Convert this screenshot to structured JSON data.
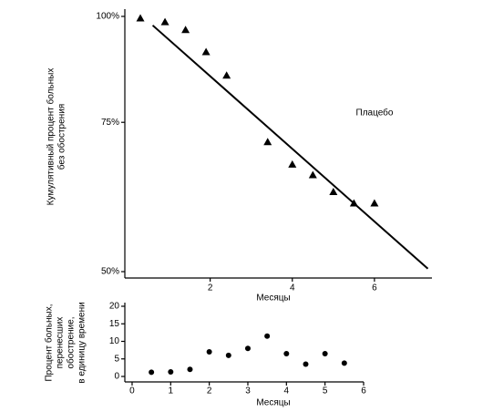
{
  "chart_data": [
    {
      "type": "scatter",
      "ylabel": [
        "Кумулятивный процент больных",
        "без обострения"
      ],
      "xlabel": "Месяцы",
      "annotation": "Плацебо",
      "xlim": [
        -0.1,
        7.4
      ],
      "ylim": [
        50,
        100
      ],
      "yscale": "log",
      "xticks": [
        2,
        4,
        6
      ],
      "yticks": [
        {
          "value": 50,
          "label": "50%"
        },
        {
          "value": 75,
          "label": "75%"
        },
        {
          "value": 100,
          "label": "100%"
        }
      ],
      "series": [
        {
          "type": "scatter",
          "marker": "triangle",
          "color": "#000000",
          "x": [
            0.3,
            0.9,
            1.4,
            1.9,
            2.4,
            3.4,
            4,
            4.5,
            5,
            5.5,
            6
          ],
          "values": [
            99.5,
            98.5,
            96.4,
            90.8,
            85.2,
            71.1,
            66.9,
            65,
            62.1,
            60.2,
            60.2
          ]
        },
        {
          "type": "line",
          "color": "#000000",
          "x": [
            0.6,
            7.3
          ],
          "values": [
            97.6,
            50.4
          ]
        }
      ]
    },
    {
      "type": "scatter",
      "ylabel": [
        "Процент больных,",
        "перенесших",
        "обострение,",
        "в единицу времени"
      ],
      "xlabel": "Месяцы",
      "xlim": [
        -0.2,
        6
      ],
      "ylim": [
        0,
        20
      ],
      "xticks": [
        0,
        1,
        2,
        3,
        4,
        5,
        6
      ],
      "yticks": [
        0,
        5,
        10,
        15,
        20
      ],
      "series": [
        {
          "type": "scatter",
          "marker": "circle",
          "color": "#000000",
          "x": [
            0.5,
            1,
            1.5,
            2,
            2.5,
            3,
            3.5,
            4,
            4.5,
            5,
            5.5
          ],
          "values": [
            1.2,
            1.3,
            2,
            7,
            6,
            8,
            11.5,
            6.5,
            3.5,
            6.5,
            3.8
          ]
        }
      ]
    }
  ]
}
